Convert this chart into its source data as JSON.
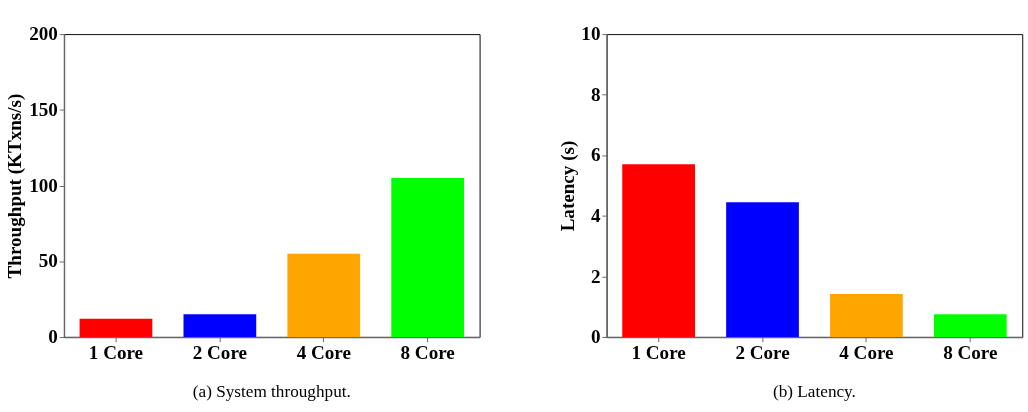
{
  "chart_data": [
    {
      "type": "bar",
      "title": "(a) System throughput.",
      "ylabel": "Throughput (KTxns/s)",
      "categories": [
        "1 Core",
        "2 Core",
        "4 Core",
        "8 Core"
      ],
      "values": [
        12,
        15,
        55,
        105
      ],
      "colors": [
        "#ff0000",
        "#0000ff",
        "#ffa500",
        "#00ff00"
      ],
      "ylim": [
        0,
        200
      ],
      "yticks": [
        0,
        50,
        100,
        150,
        200
      ],
      "grid": false,
      "legend": false
    },
    {
      "type": "bar",
      "title": "(b) Latency.",
      "ylabel": "Latency (s)",
      "categories": [
        "1 Core",
        "2 Core",
        "4 Core",
        "8 Core"
      ],
      "values": [
        5.7,
        4.45,
        1.42,
        0.75
      ],
      "colors": [
        "#ff0000",
        "#0000ff",
        "#ffa500",
        "#00ff00"
      ],
      "ylim": [
        0,
        10
      ],
      "yticks": [
        0,
        2,
        4,
        6,
        8,
        10
      ],
      "grid": false,
      "legend": false
    }
  ]
}
